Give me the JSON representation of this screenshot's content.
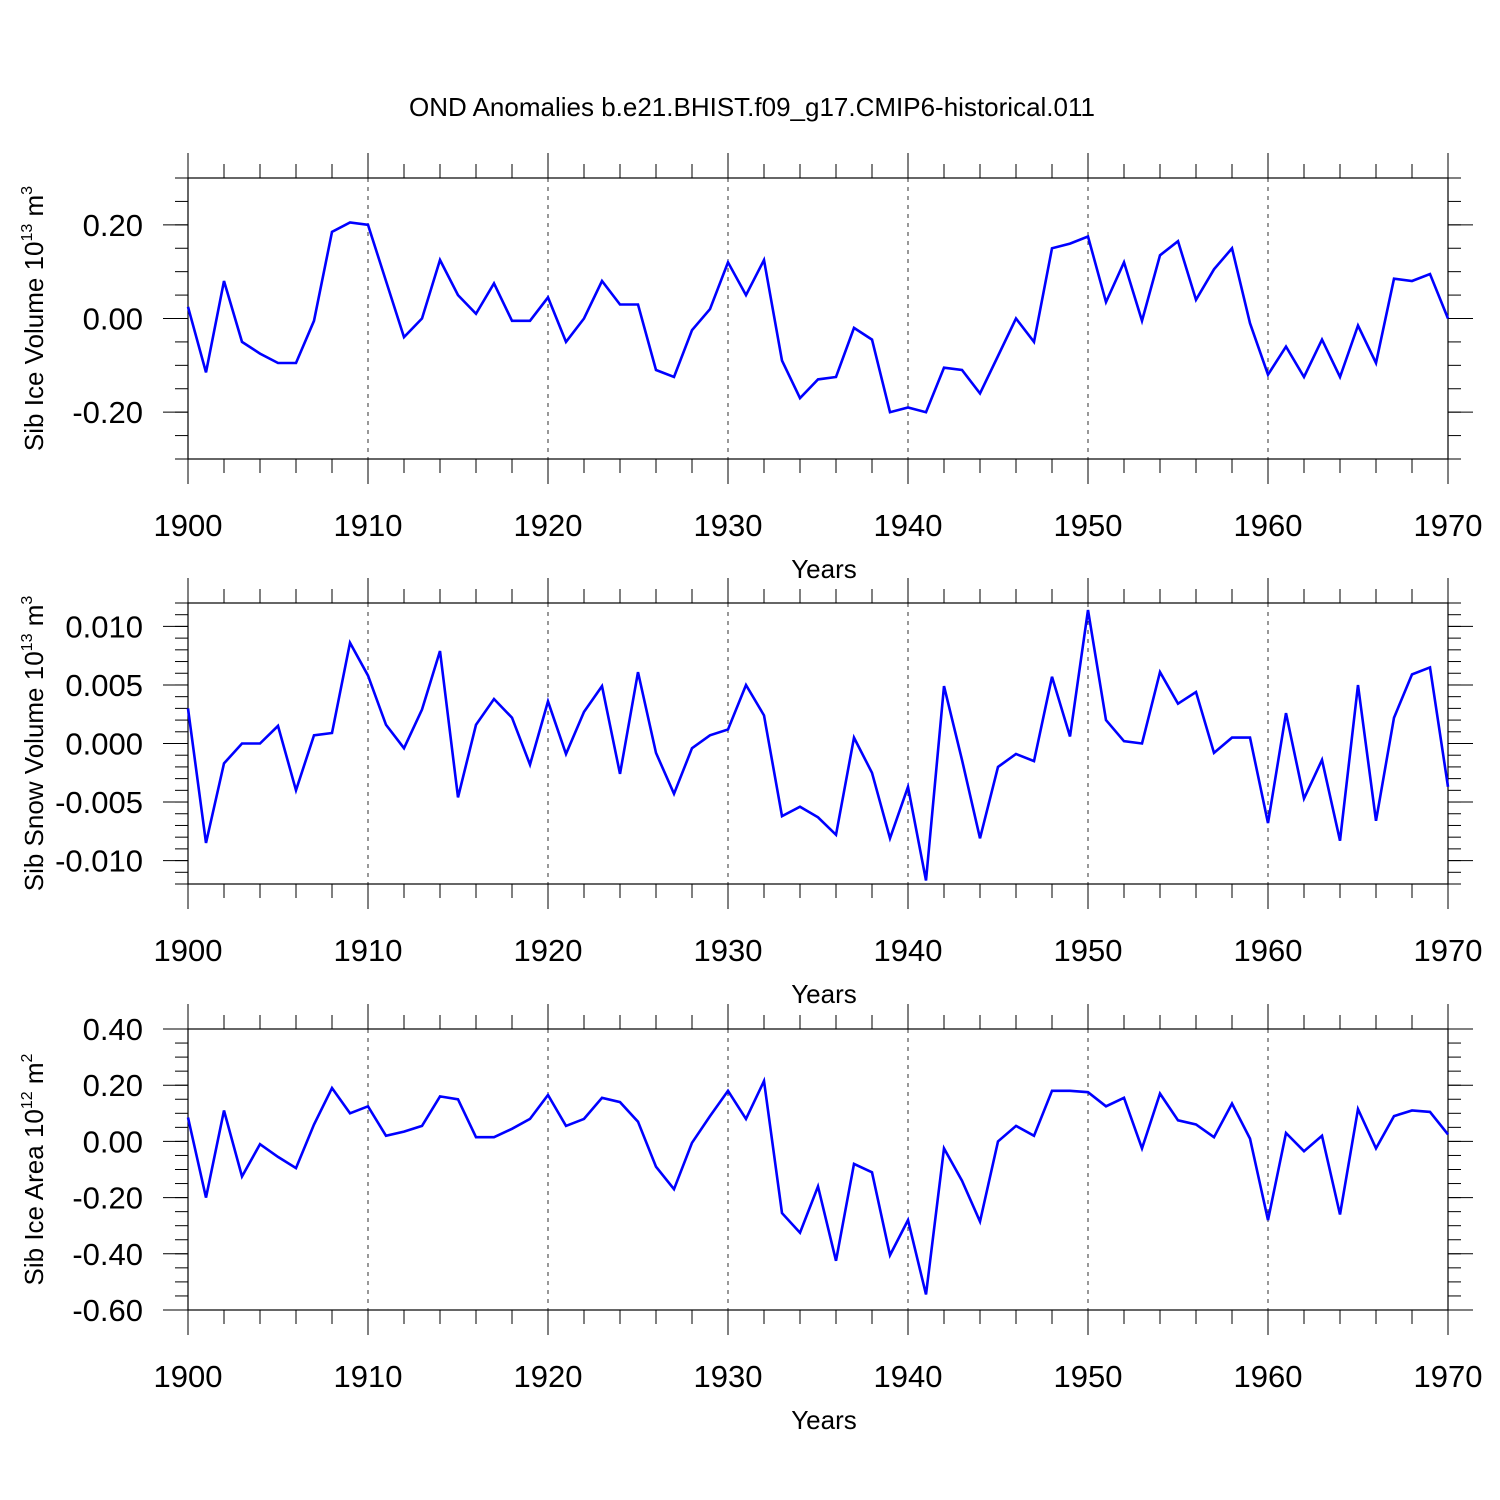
{
  "title": "OND Anomalies b.e21.BHIST.f09_g17.CMIP6-historical.011",
  "line_color": "#0000ff",
  "chart_data": [
    {
      "type": "line",
      "xlabel": "Years",
      "ylabel": "Sib Ice Volume 10",
      "ylabel_exp": "13",
      "ylabel_unit": " m",
      "ylabel_unit_exp": "3",
      "xlim": [
        1900,
        1970
      ],
      "ylim": [
        -0.3,
        0.3
      ],
      "xticks": [
        1900,
        1910,
        1920,
        1930,
        1940,
        1950,
        1960,
        1970
      ],
      "xtick_labels": [
        "1900",
        "1910",
        "1920",
        "1930",
        "1940",
        "1950",
        "1960",
        "1970"
      ],
      "yticks": [
        -0.2,
        0.0,
        0.2
      ],
      "ytick_labels": [
        "-0.20",
        "0.00",
        "0.20"
      ],
      "yminor_step": 0.05,
      "grid": "vertical dashed at major x ticks",
      "x": [
        1900,
        1901,
        1902,
        1903,
        1904,
        1905,
        1906,
        1907,
        1908,
        1909,
        1910,
        1911,
        1912,
        1913,
        1914,
        1915,
        1916,
        1917,
        1918,
        1919,
        1920,
        1921,
        1922,
        1923,
        1924,
        1925,
        1926,
        1927,
        1928,
        1929,
        1930,
        1931,
        1932,
        1933,
        1934,
        1935,
        1936,
        1937,
        1938,
        1939,
        1940,
        1941,
        1942,
        1943,
        1944,
        1945,
        1946,
        1947,
        1948,
        1949,
        1950,
        1951,
        1952,
        1953,
        1954,
        1955,
        1956,
        1957,
        1958,
        1959,
        1960,
        1961,
        1962,
        1963,
        1964,
        1965,
        1966,
        1967,
        1968,
        1969,
        1970
      ],
      "series": [
        {
          "values": [
            0.025,
            -0.115,
            0.08,
            -0.05,
            -0.075,
            -0.095,
            -0.095,
            -0.005,
            0.185,
            0.205,
            0.2,
            0.08,
            -0.04,
            0.0,
            0.125,
            0.05,
            0.01,
            0.075,
            -0.005,
            -0.005,
            0.045,
            -0.05,
            0.0,
            0.08,
            0.03,
            0.03,
            -0.11,
            -0.125,
            -0.025,
            0.02,
            0.12,
            0.05,
            0.125,
            -0.09,
            -0.17,
            -0.13,
            -0.125,
            -0.02,
            -0.045,
            -0.2,
            -0.19,
            -0.2,
            -0.105,
            -0.11,
            -0.16,
            -0.08,
            0.0,
            -0.05,
            0.15,
            0.16,
            0.175,
            0.035,
            0.12,
            -0.005,
            0.135,
            0.165,
            0.04,
            0.105,
            0.15,
            -0.01,
            -0.12,
            -0.06,
            -0.125,
            -0.045,
            -0.125,
            -0.015,
            -0.095,
            0.085,
            0.08,
            0.095,
            0.0
          ]
        }
      ]
    },
    {
      "type": "line",
      "xlabel": "Years",
      "ylabel": "Sib Snow Volume 10",
      "ylabel_exp": "13",
      "ylabel_unit": " m",
      "ylabel_unit_exp": "3",
      "xlim": [
        1900,
        1970
      ],
      "ylim": [
        -0.012,
        0.012
      ],
      "xticks": [
        1900,
        1910,
        1920,
        1930,
        1940,
        1950,
        1960,
        1970
      ],
      "xtick_labels": [
        "1900",
        "1910",
        "1920",
        "1930",
        "1940",
        "1950",
        "1960",
        "1970"
      ],
      "yticks": [
        -0.01,
        -0.005,
        0.0,
        0.005,
        0.01
      ],
      "ytick_labels": [
        "-0.010",
        "-0.005",
        "0.000",
        "0.005",
        "0.010"
      ],
      "yminor_step": 0.001,
      "grid": "vertical dashed at major x ticks",
      "x": [
        1900,
        1901,
        1902,
        1903,
        1904,
        1905,
        1906,
        1907,
        1908,
        1909,
        1910,
        1911,
        1912,
        1913,
        1914,
        1915,
        1916,
        1917,
        1918,
        1919,
        1920,
        1921,
        1922,
        1923,
        1924,
        1925,
        1926,
        1927,
        1928,
        1929,
        1930,
        1931,
        1932,
        1933,
        1934,
        1935,
        1936,
        1937,
        1938,
        1939,
        1940,
        1941,
        1942,
        1943,
        1944,
        1945,
        1946,
        1947,
        1948,
        1949,
        1950,
        1951,
        1952,
        1953,
        1954,
        1955,
        1956,
        1957,
        1958,
        1959,
        1960,
        1961,
        1962,
        1963,
        1964,
        1965,
        1966,
        1967,
        1968,
        1969,
        1970
      ],
      "series": [
        {
          "values": [
            0.003,
            -0.0085,
            -0.0017,
            0.0,
            0.0,
            0.0015,
            -0.004,
            0.0007,
            0.0009,
            0.0086,
            0.0058,
            0.0016,
            -0.0004,
            0.0029,
            0.0079,
            -0.0046,
            0.0016,
            0.0038,
            0.0022,
            -0.0018,
            0.0036,
            -0.0009,
            0.0027,
            0.0049,
            -0.0026,
            0.0061,
            -0.0008,
            -0.0043,
            -0.0004,
            0.0007,
            0.0012,
            0.005,
            0.0024,
            -0.0062,
            -0.0054,
            -0.0063,
            -0.0078,
            0.0005,
            -0.0025,
            -0.0081,
            -0.0037,
            -0.0117,
            0.0049,
            -0.0014,
            -0.0081,
            -0.002,
            -0.0009,
            -0.0015,
            0.0057,
            0.0006,
            0.0114,
            0.002,
            0.0002,
            0.0,
            0.0061,
            0.0034,
            0.0044,
            -0.0008,
            0.0005,
            0.0005,
            -0.0068,
            0.0026,
            -0.0047,
            -0.0014,
            -0.0083,
            0.005,
            -0.0066,
            0.0022,
            0.0059,
            0.0065,
            -0.0037
          ]
        }
      ]
    },
    {
      "type": "line",
      "xlabel": "Years",
      "ylabel": "Sib Ice Area 10",
      "ylabel_exp": "12",
      "ylabel_unit": " m",
      "ylabel_unit_exp": "2",
      "xlim": [
        1900,
        1970
      ],
      "ylim": [
        -0.6,
        0.4
      ],
      "xticks": [
        1900,
        1910,
        1920,
        1930,
        1940,
        1950,
        1960,
        1970
      ],
      "xtick_labels": [
        "1900",
        "1910",
        "1920",
        "1930",
        "1940",
        "1950",
        "1960",
        "1970"
      ],
      "yticks": [
        -0.6,
        -0.4,
        -0.2,
        0.0,
        0.2,
        0.4
      ],
      "ytick_labels": [
        "-0.60",
        "-0.40",
        "-0.20",
        "0.00",
        "0.20",
        "0.40"
      ],
      "yminor_step": 0.05,
      "grid": "vertical dashed at major x ticks",
      "x": [
        1900,
        1901,
        1902,
        1903,
        1904,
        1905,
        1906,
        1907,
        1908,
        1909,
        1910,
        1911,
        1912,
        1913,
        1914,
        1915,
        1916,
        1917,
        1918,
        1919,
        1920,
        1921,
        1922,
        1923,
        1924,
        1925,
        1926,
        1927,
        1928,
        1929,
        1930,
        1931,
        1932,
        1933,
        1934,
        1935,
        1936,
        1937,
        1938,
        1939,
        1940,
        1941,
        1942,
        1943,
        1944,
        1945,
        1946,
        1947,
        1948,
        1949,
        1950,
        1951,
        1952,
        1953,
        1954,
        1955,
        1956,
        1957,
        1958,
        1959,
        1960,
        1961,
        1962,
        1963,
        1964,
        1965,
        1966,
        1967,
        1968,
        1969,
        1970
      ],
      "series": [
        {
          "values": [
            0.085,
            -0.2,
            0.11,
            -0.125,
            -0.01,
            -0.055,
            -0.095,
            0.06,
            0.19,
            0.1,
            0.125,
            0.02,
            0.035,
            0.055,
            0.16,
            0.15,
            0.015,
            0.015,
            0.045,
            0.08,
            0.165,
            0.055,
            0.08,
            0.155,
            0.14,
            0.07,
            -0.09,
            -0.17,
            -0.005,
            0.09,
            0.18,
            0.08,
            0.215,
            -0.255,
            -0.325,
            -0.16,
            -0.425,
            -0.08,
            -0.11,
            -0.405,
            -0.28,
            -0.545,
            -0.025,
            -0.14,
            -0.285,
            0.0,
            0.055,
            0.02,
            0.18,
            0.18,
            0.175,
            0.125,
            0.155,
            -0.025,
            0.17,
            0.075,
            0.06,
            0.015,
            0.135,
            0.01,
            -0.28,
            0.03,
            -0.035,
            0.02,
            -0.26,
            0.115,
            -0.025,
            0.09,
            0.11,
            0.105,
            0.025
          ]
        }
      ]
    }
  ]
}
